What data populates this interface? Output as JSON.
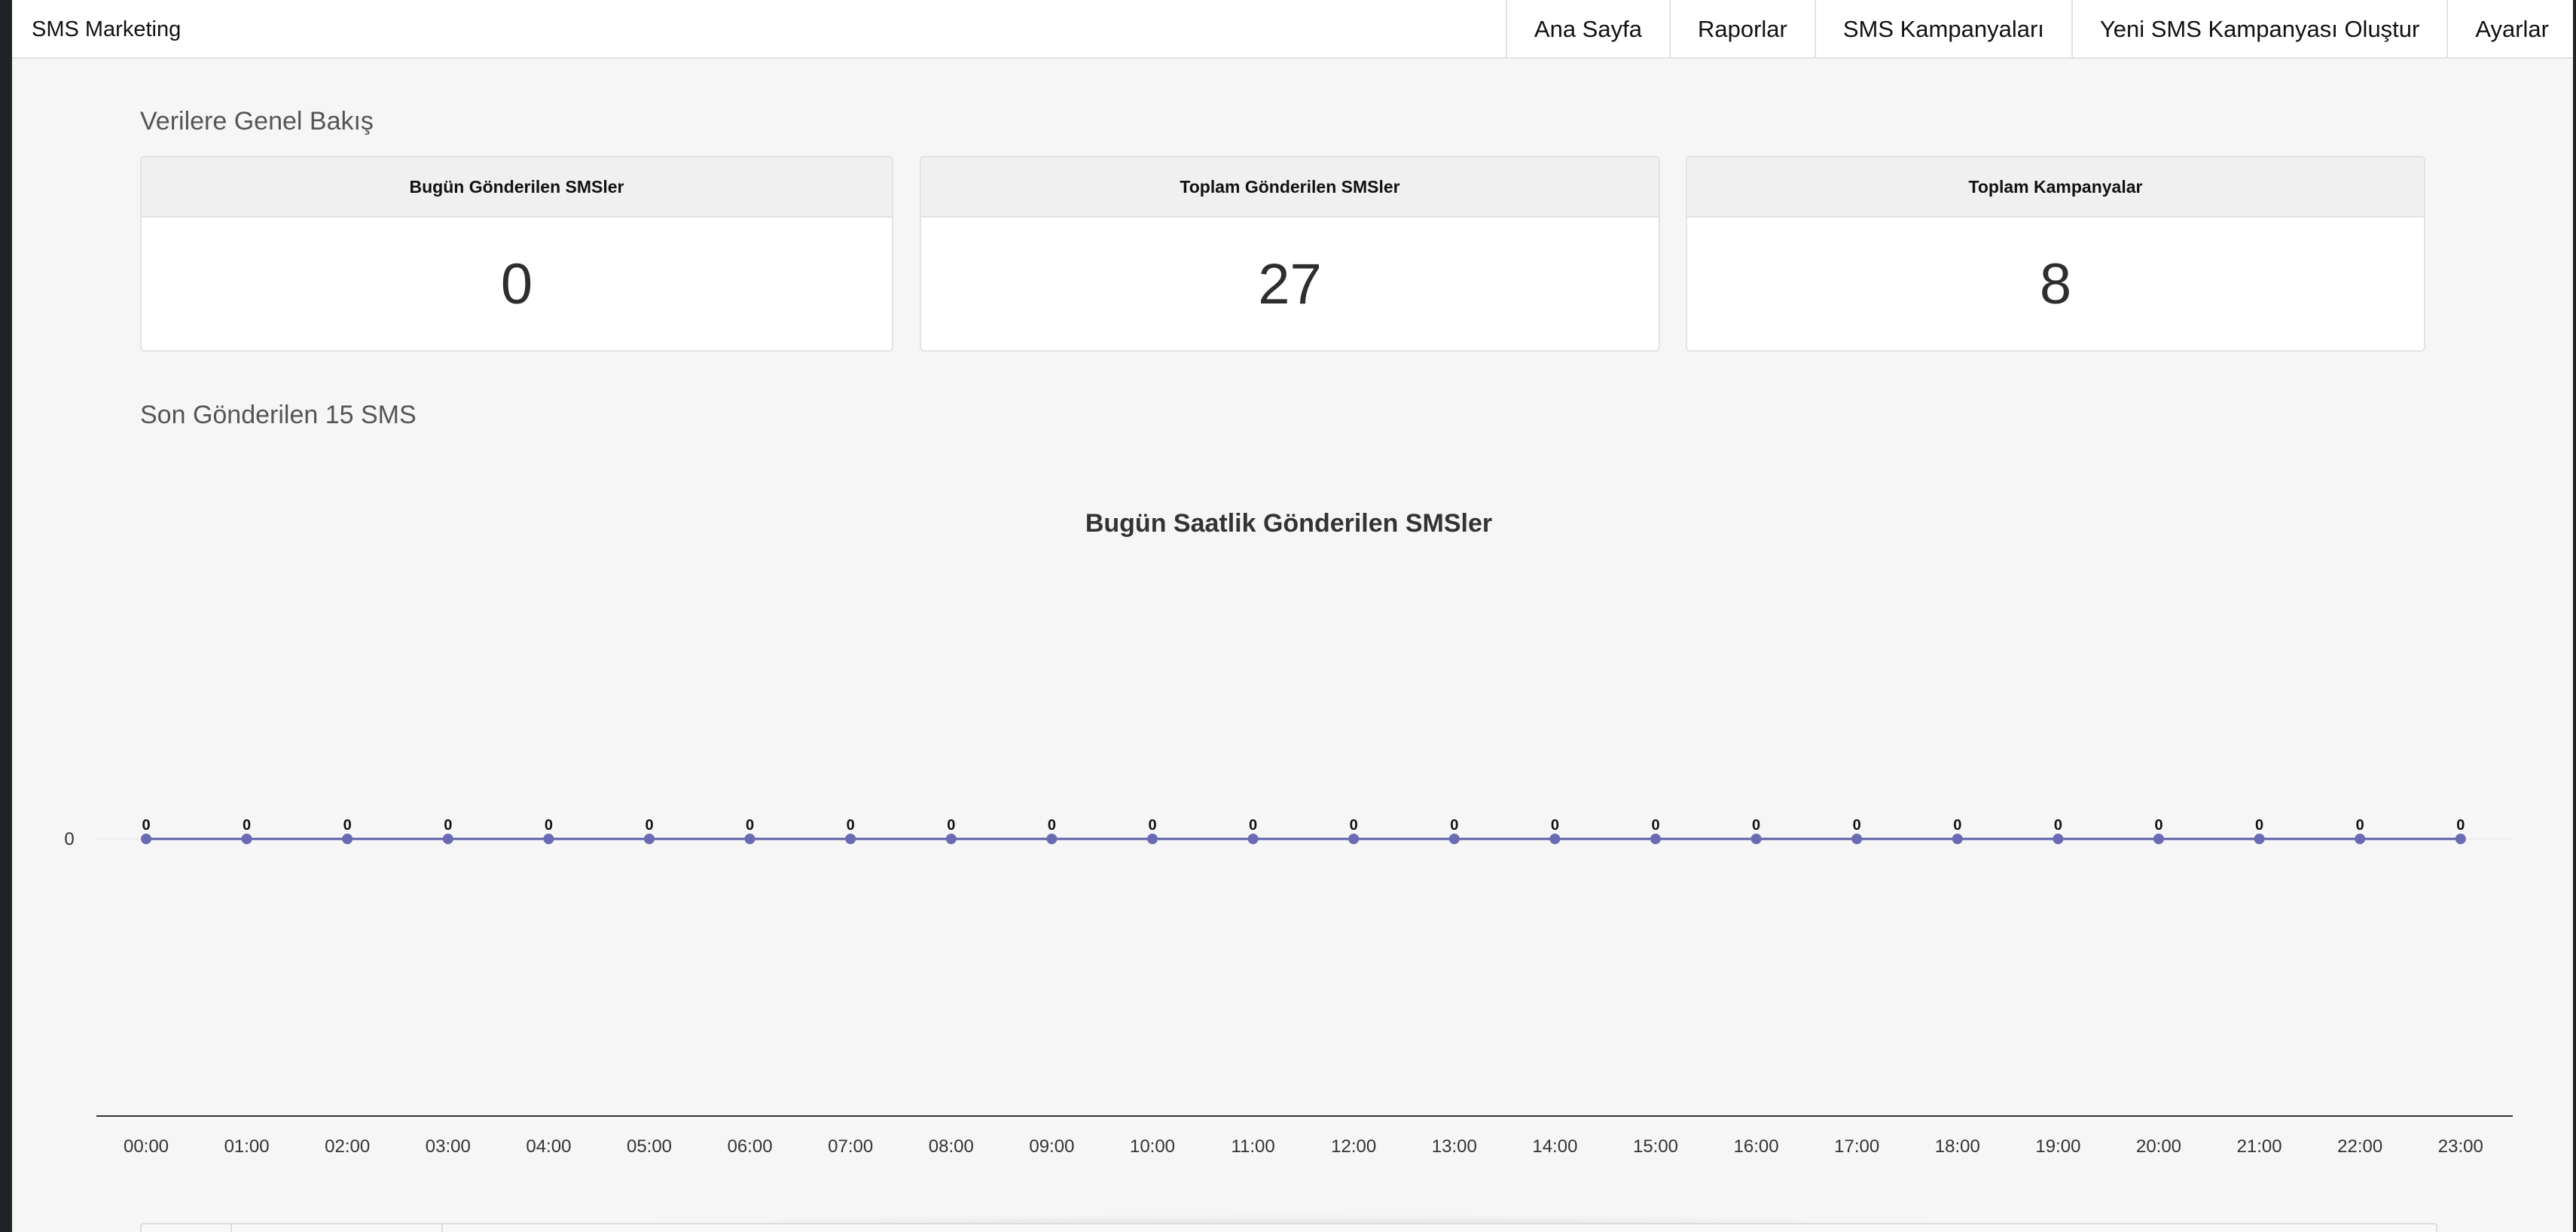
{
  "navbar": {
    "brand": "SMS Marketing",
    "links": [
      {
        "label": "Ana Sayfa",
        "name": "nav-home"
      },
      {
        "label": "Raporlar",
        "name": "nav-reports"
      },
      {
        "label": "SMS Kampanyaları",
        "name": "nav-sms-campaigns"
      },
      {
        "label": "Yeni SMS Kampanyası Oluştur",
        "name": "nav-new-campaign"
      },
      {
        "label": "Ayarlar",
        "name": "nav-settings"
      }
    ]
  },
  "overview": {
    "heading": "Verilere Genel Bakış",
    "cards": {
      "today": {
        "title": "Bugün Gönderilen SMSler",
        "value": "0"
      },
      "total": {
        "title": "Toplam Gönderilen SMSler",
        "value": "27"
      },
      "campaigns": {
        "title": "Toplam Kampanyalar",
        "value": "8"
      }
    }
  },
  "recent": {
    "heading": "Son Gönderilen 15 SMS"
  },
  "colors": {
    "series_line": "#5b5ea6",
    "series_point": "#6b6bb5"
  },
  "chart_data": {
    "type": "line",
    "title": "Bugün Saatlik Gönderilen SMSler",
    "xlabel": "",
    "ylabel": "",
    "categories": [
      "00:00",
      "01:00",
      "02:00",
      "03:00",
      "04:00",
      "05:00",
      "06:00",
      "07:00",
      "08:00",
      "09:00",
      "10:00",
      "11:00",
      "12:00",
      "13:00",
      "14:00",
      "15:00",
      "16:00",
      "17:00",
      "18:00",
      "19:00",
      "20:00",
      "21:00",
      "22:00",
      "23:00"
    ],
    "series": [
      {
        "values": [
          0,
          0,
          0,
          0,
          0,
          0,
          0,
          0,
          0,
          0,
          0,
          0,
          0,
          0,
          0,
          0,
          0,
          0,
          0,
          0,
          0,
          0,
          0,
          0
        ]
      }
    ],
    "y_ticks": [
      0
    ],
    "data_labels": true,
    "grid": false,
    "legend": "none"
  }
}
